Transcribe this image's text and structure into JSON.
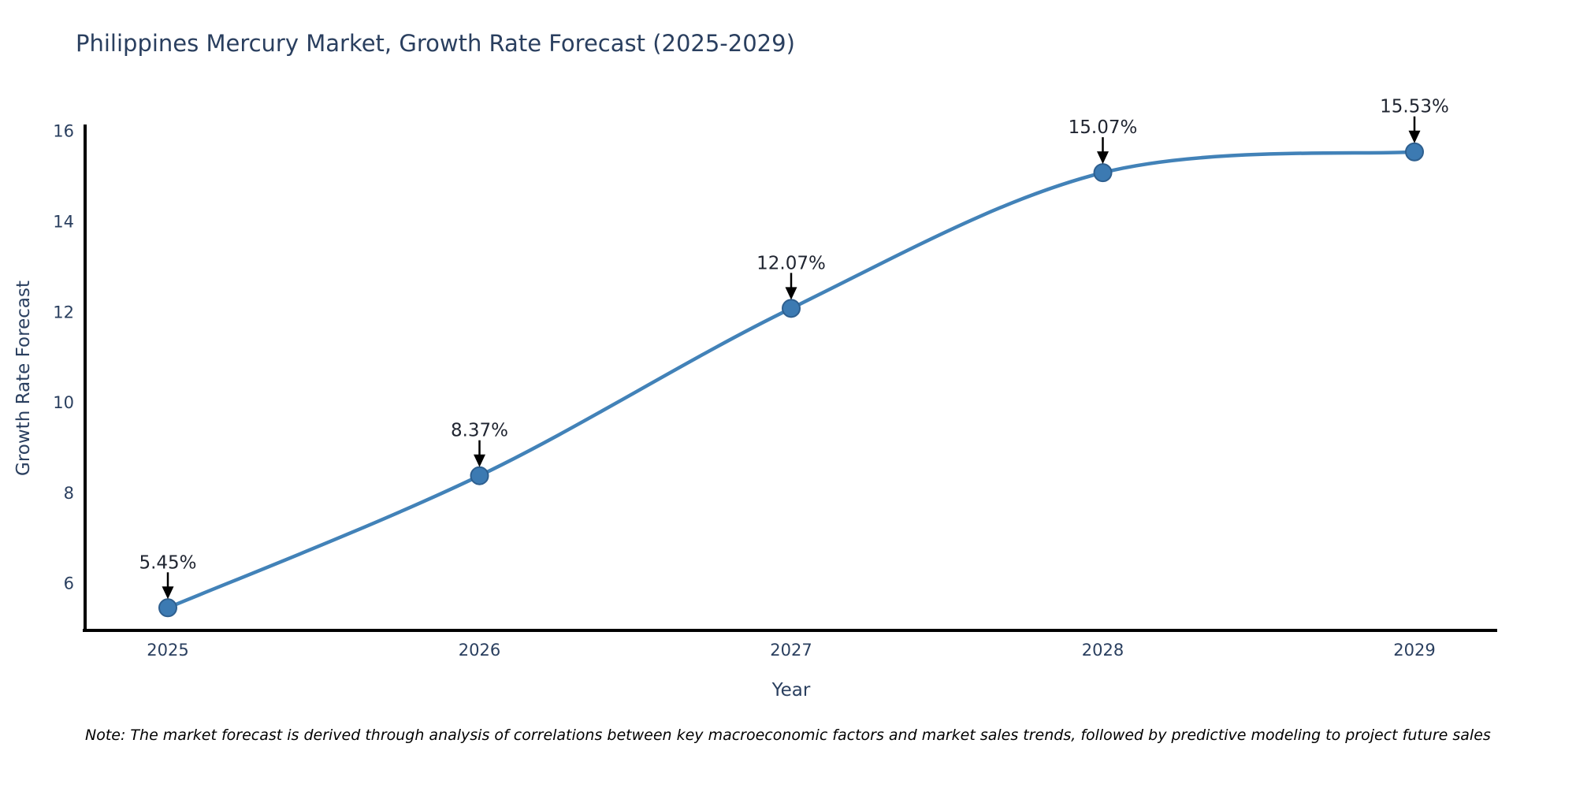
{
  "chart_data": {
    "type": "line",
    "title": "Philippines Mercury Market, Growth Rate Forecast (2025-2029)",
    "x": [
      "2025",
      "2026",
      "2027",
      "2028",
      "2029"
    ],
    "series": [
      {
        "name": "Growth Rate Forecast",
        "values": [
          5.45,
          8.37,
          12.07,
          15.07,
          15.53
        ]
      }
    ],
    "point_labels": [
      "5.45%",
      "8.37%",
      "12.07%",
      "15.07%",
      "15.53%"
    ],
    "xlabel": "Year",
    "ylabel": "Growth Rate Forecast",
    "ylim": [
      4.95,
      16.1
    ],
    "yticks": [
      6,
      8,
      10,
      12,
      14,
      16
    ],
    "grid": false,
    "legend": "none",
    "line_shape": "spline",
    "note": "Note: The market forecast is derived through analysis of correlations between key macroeconomic factors and market sales trends, followed by predictive modeling to project future sales",
    "colors": {
      "line": "#4282b8",
      "marker_fill": "#3c7ab2",
      "marker_edge": "#2e5f8f",
      "axis_line": "#000000",
      "title_text": "#2a3f5f",
      "tick_text": "#2a3f5f",
      "annotation_text": "#1f2430",
      "annotation_arrow": "#000000",
      "note_text": "#000000",
      "background": "#ffffff"
    }
  }
}
